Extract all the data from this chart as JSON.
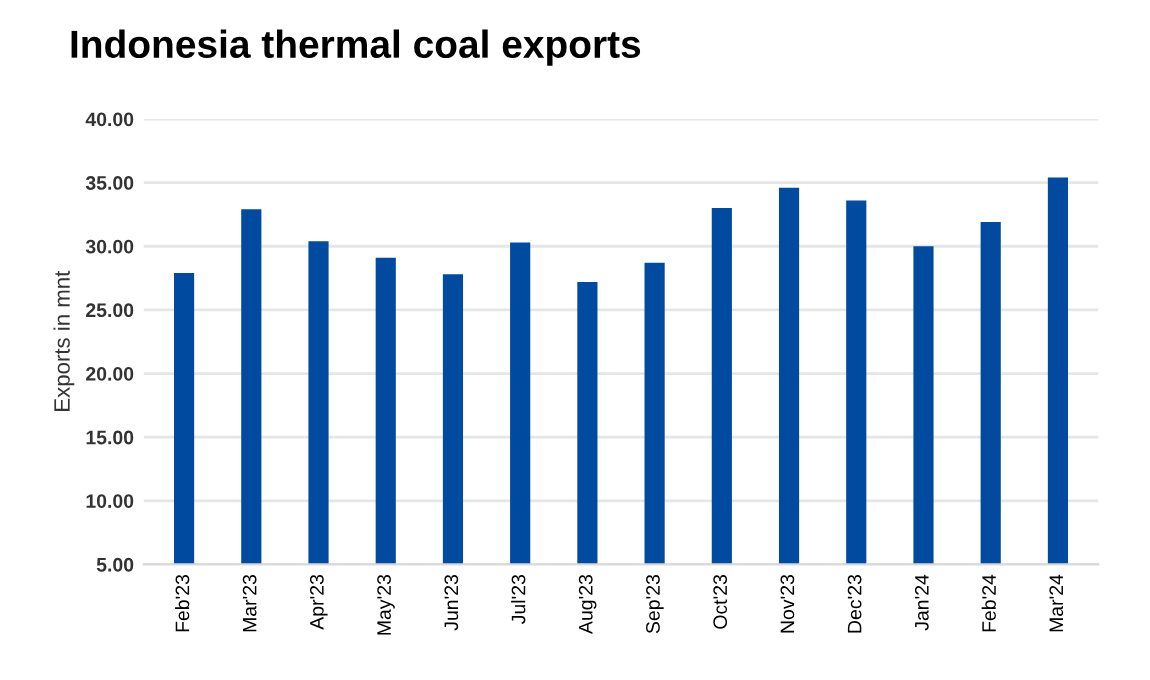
{
  "chart_data": {
    "type": "bar",
    "title": "Indonesia thermal coal exports",
    "ylabel": "Exports in mnt",
    "categories": [
      "Feb'23",
      "Mar'23",
      "Apr'23",
      "May'23",
      "Jun'23",
      "Jul'23",
      "Aug'23",
      "Sep'23",
      "Oct'23",
      "Nov'23",
      "Dec'23",
      "Jan'24",
      "Feb'24",
      "Mar'24"
    ],
    "values": [
      27.9,
      32.9,
      30.4,
      29.1,
      27.8,
      30.3,
      27.2,
      28.7,
      33.0,
      34.6,
      33.6,
      30.0,
      31.9,
      35.4
    ],
    "color": "#004a9f",
    "ylim": [
      5,
      40
    ],
    "yticks": [
      {
        "value": 5,
        "label": "5.00"
      },
      {
        "value": 10,
        "label": "10.00"
      },
      {
        "value": 15,
        "label": "15.00"
      },
      {
        "value": 20,
        "label": "20.00"
      },
      {
        "value": 25,
        "label": "25.00"
      },
      {
        "value": 30,
        "label": "30.00"
      },
      {
        "value": 35,
        "label": "35.00"
      },
      {
        "value": 40,
        "label": "40.00"
      }
    ],
    "grid": "y",
    "legend": false
  }
}
